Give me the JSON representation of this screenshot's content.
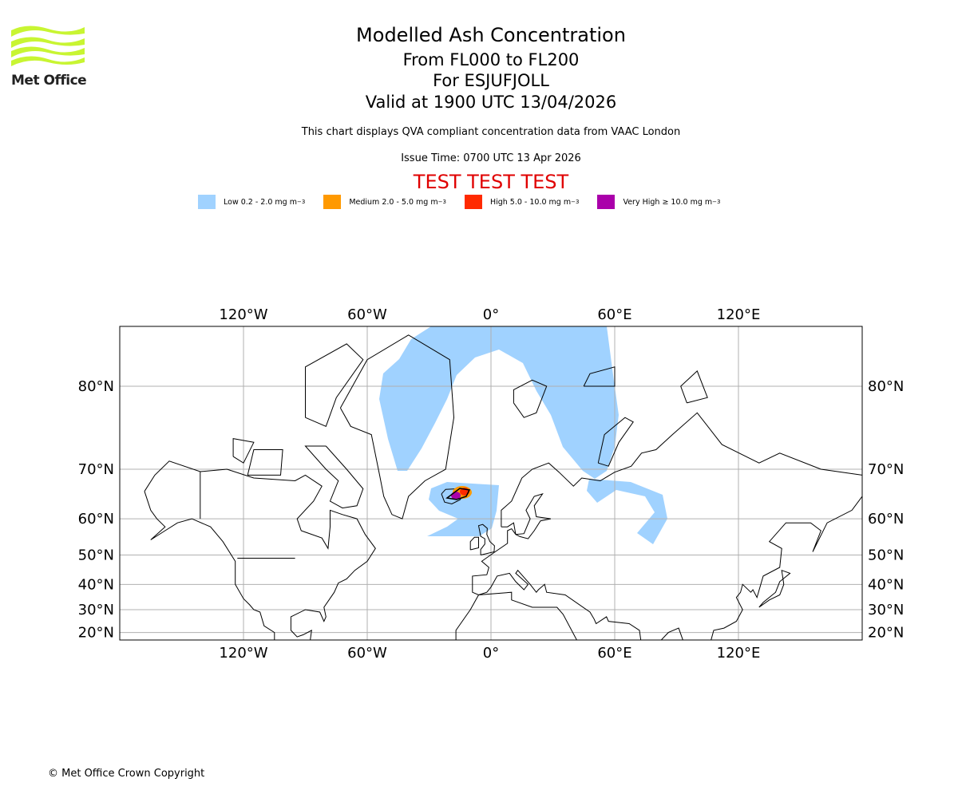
{
  "logo": {
    "text": "Met Office"
  },
  "header": {
    "title": "Modelled Ash Concentration",
    "levels": "From FL000 to FL200",
    "volcano": "For ESJUFJOLL",
    "valid": "Valid at 1900 UTC 13/04/2026",
    "description": "This chart displays QVA compliant concentration data from VAAC London",
    "issue": "Issue Time: 0700 UTC 13 Apr 2026",
    "test_banner": "TEST TEST TEST"
  },
  "legend": [
    {
      "label": "Low 0.2 - 2.0 mg m",
      "sup": "−3",
      "color": "#a0d2ff"
    },
    {
      "label": "Medium 2.0 - 5.0 mg m",
      "sup": "−3",
      "color": "#ff9900"
    },
    {
      "label": "High 5.0 - 10.0 mg m",
      "sup": "−3",
      "color": "#ff2a00"
    },
    {
      "label": "Very High ≥ 10.0 mg m",
      "sup": "−3",
      "color": "#aa00aa"
    }
  ],
  "map": {
    "lon_ticks": [
      "120°W",
      "60°W",
      "0°",
      "60°E",
      "120°E"
    ],
    "lat_ticks": [
      "80°N",
      "70°N",
      "60°N",
      "50°N",
      "40°N",
      "30°N",
      "20°N"
    ]
  },
  "footer": {
    "copyright": "© Met Office Crown Copyright"
  }
}
